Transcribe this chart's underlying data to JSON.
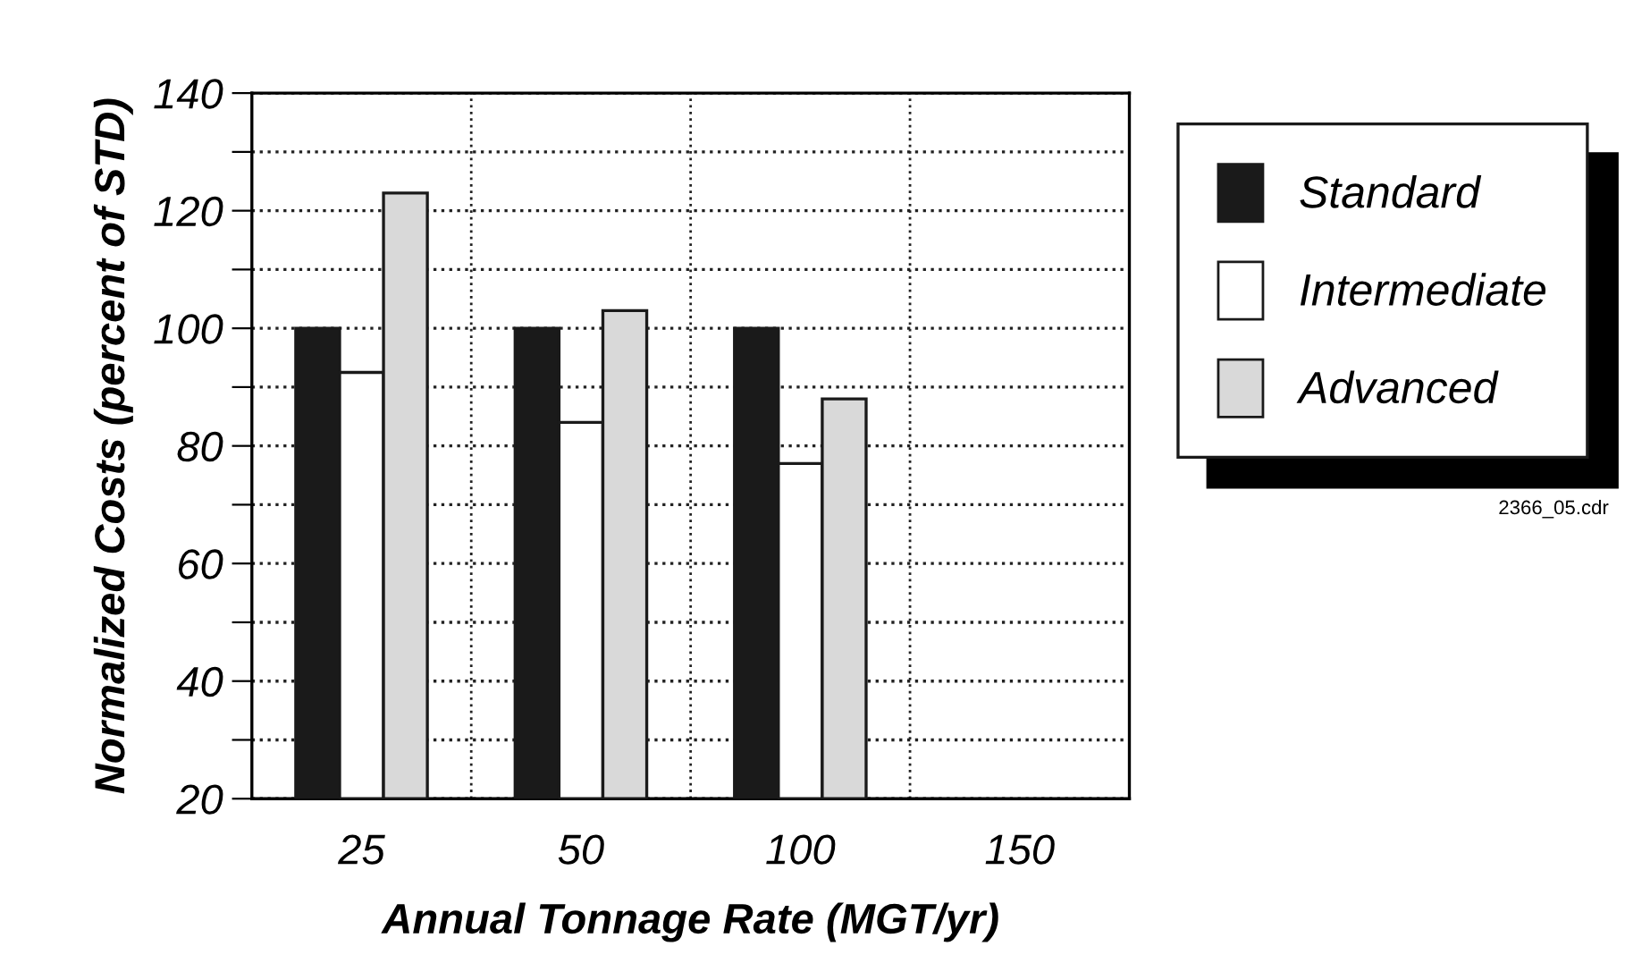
{
  "chart_data": {
    "type": "bar",
    "xlabel": "Annual Tonnage Rate (MGT/yr)",
    "ylabel": "Normalized Costs (percent of STD)",
    "categories": [
      "25",
      "50",
      "100",
      "150"
    ],
    "series": [
      {
        "name": "Standard",
        "color": "#1a1a1a",
        "values": [
          100,
          100,
          100,
          null
        ]
      },
      {
        "name": "Intermediate",
        "color": "#ffffff",
        "values": [
          92.5,
          84,
          77,
          null
        ]
      },
      {
        "name": "Advanced",
        "color": "#d9d9d9",
        "values": [
          123,
          103,
          88,
          null
        ]
      }
    ],
    "ylim": [
      20,
      140
    ],
    "yticks": [
      20,
      {
        "value": 30,
        "label": null
      },
      40,
      {
        "value": 50,
        "label": null
      },
      60,
      {
        "value": 70,
        "label": null
      },
      80,
      {
        "value": 90,
        "label": null
      },
      100,
      {
        "value": 110,
        "label": null
      },
      120,
      {
        "value": 130,
        "label": null
      },
      140
    ],
    "grid": true,
    "legend": "right",
    "line_style": "dotted",
    "annotations": [
      "2366_05.cdr"
    ]
  }
}
